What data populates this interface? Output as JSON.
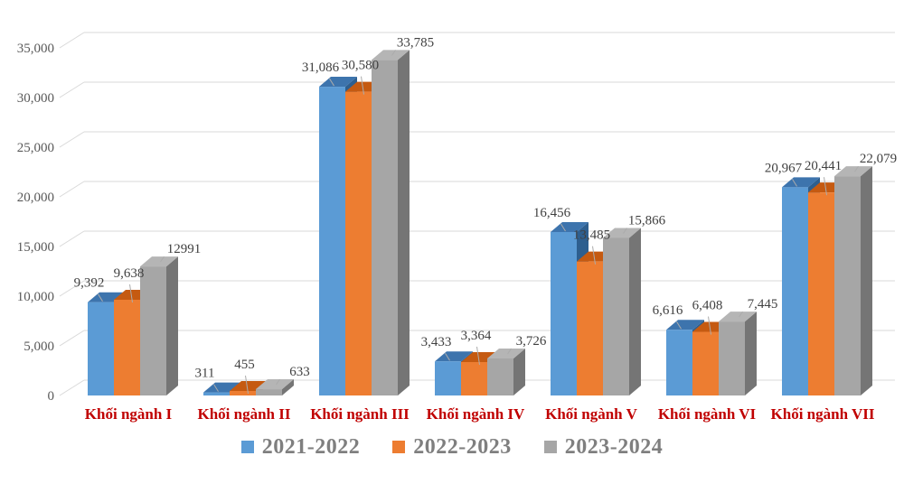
{
  "chart_data": {
    "type": "bar",
    "subtype": "3d-clustered-column",
    "title": "",
    "xlabel": "",
    "ylabel": "",
    "categories": [
      "Khối ngành I",
      "Khối ngành II",
      "Khối ngành III",
      "Khối ngành IV",
      "Khối ngành V",
      "Khối ngành VI",
      "Khối ngành VII"
    ],
    "series": [
      {
        "name": "2021-2022",
        "color": "#5B9BD5",
        "color_top": "#3D74AD",
        "color_side": "#2E5F8F",
        "values": [
          9392,
          311,
          31086,
          3433,
          16456,
          6616,
          20967
        ],
        "labels": [
          "9,392",
          "311",
          "31,086",
          "3,433",
          "16,456",
          "6,616",
          "20,967"
        ]
      },
      {
        "name": "2022-2023",
        "color": "#ED7D31",
        "color_top": "#C55A11",
        "color_side": "#A84D10",
        "values": [
          9638,
          455,
          30580,
          3364,
          13485,
          6408,
          20441
        ],
        "labels": [
          "9,638",
          "455",
          "30,580",
          "3,364",
          "13,485",
          "6,408",
          "20,441"
        ]
      },
      {
        "name": "2023-2024",
        "color": "#A6A6A6",
        "color_top": "#B5B5B5",
        "color_side": "#757575",
        "values": [
          12991,
          633,
          33785,
          3726,
          15866,
          7445,
          22079
        ],
        "labels": [
          "12991",
          "633",
          "33,785",
          "3,726",
          "15,866",
          "7,445",
          "22,079"
        ]
      }
    ],
    "y_axis": {
      "min": 0,
      "max": 35000,
      "step": 5000,
      "tick_labels": [
        "0",
        "5,000",
        "10,000",
        "15,000",
        "20,000",
        "25,000",
        "30,000",
        "35,000"
      ]
    },
    "grid": true,
    "legend": {
      "position": "bottom",
      "entries": [
        "2021-2022",
        "2022-2023",
        "2023-2024"
      ]
    },
    "styles": {
      "background": "#FFFFFF",
      "gridline_color": "#D9D9D9",
      "axis_label_color": "#595959",
      "data_label_color": "#404040",
      "category_label_color": "#C00000",
      "legend_text_color": "#7F7F7F",
      "leader_line_color": "#ABABAB"
    }
  }
}
